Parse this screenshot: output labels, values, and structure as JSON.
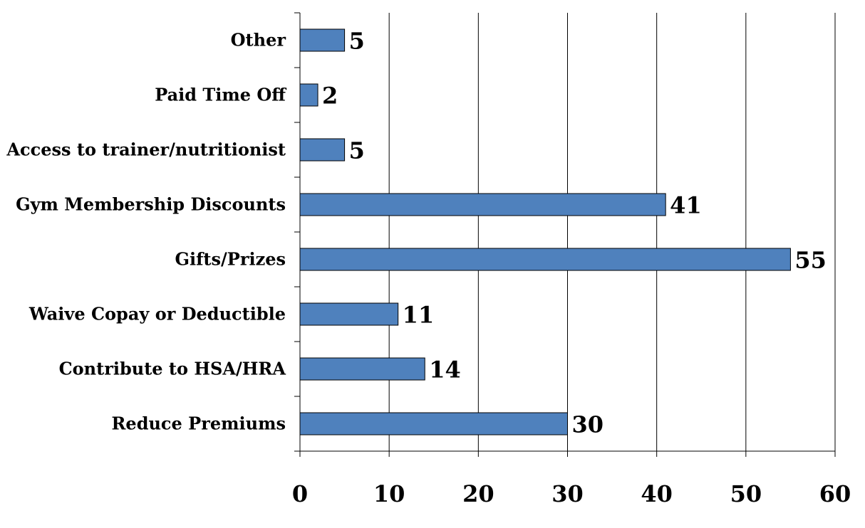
{
  "chart_data": {
    "type": "bar",
    "orientation": "horizontal",
    "categories": [
      "Reduce Premiums",
      "Contribute to HSA/HRA",
      "Waive Copay or Deductible",
      "Gifts/Prizes",
      "Gym Membership Discounts",
      "Access to trainer/nutritionist",
      "Paid Time Off",
      "Other"
    ],
    "values": [
      30,
      14,
      11,
      55,
      41,
      5,
      2,
      5
    ],
    "xlim": [
      0,
      60
    ],
    "xticks": [
      "0",
      "10",
      "20",
      "30",
      "40",
      "50",
      "60"
    ],
    "grid": "vertical",
    "legend": "none",
    "title": "",
    "xlabel": "",
    "ylabel": "",
    "bar_color": "#4F81BD",
    "bar_outline": "#000000"
  }
}
